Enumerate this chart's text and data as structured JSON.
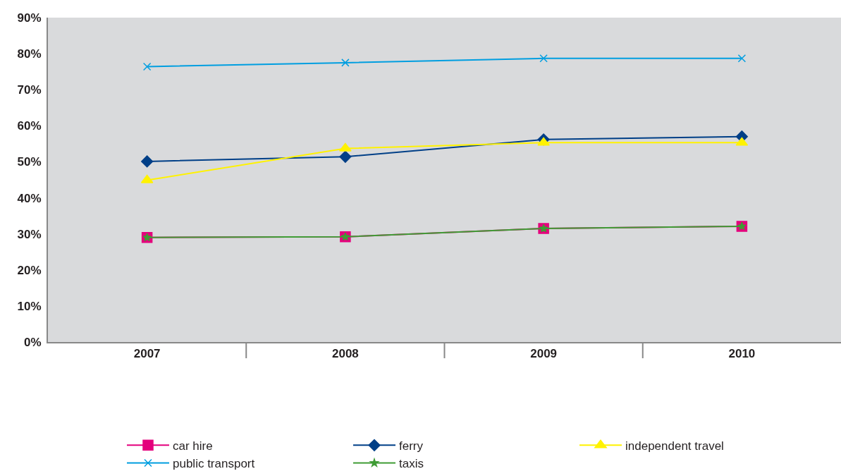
{
  "chart_data": {
    "type": "line",
    "categories": [
      "2007",
      "2008",
      "2009",
      "2010"
    ],
    "ylim": [
      0,
      90
    ],
    "yticks": [
      {
        "value": 0,
        "label": "0%"
      },
      {
        "value": 10,
        "label": "10%"
      },
      {
        "value": 20,
        "label": "20%"
      },
      {
        "value": 30,
        "label": "30%"
      },
      {
        "value": 40,
        "label": "40%"
      },
      {
        "value": 50,
        "label": "50%"
      },
      {
        "value": 60,
        "label": "60%"
      },
      {
        "value": 70,
        "label": "70%"
      },
      {
        "value": 80,
        "label": "80%"
      },
      {
        "value": 90,
        "label": "90%"
      }
    ],
    "grid": false,
    "legend": "bottom",
    "line_style": "solid",
    "series": [
      {
        "name": "car hire",
        "color": "#e4007c",
        "marker": "square",
        "values": [
          29.0,
          29.2,
          31.5,
          32.1
        ]
      },
      {
        "name": "ferry",
        "color": "#003f87",
        "marker": "diamond",
        "values": [
          50.1,
          51.4,
          56.2,
          57.0
        ]
      },
      {
        "name": "independent travel",
        "color": "#fff200",
        "marker": "triangle",
        "values": [
          44.9,
          53.7,
          55.3,
          55.3
        ]
      },
      {
        "name": "public transport",
        "color": "#009ee0",
        "marker": "cross",
        "values": [
          76.4,
          77.5,
          78.7,
          78.7
        ]
      },
      {
        "name": "taxis",
        "color": "#3f9c35",
        "marker": "star",
        "values": [
          29.0,
          29.2,
          31.5,
          32.1
        ]
      }
    ]
  }
}
